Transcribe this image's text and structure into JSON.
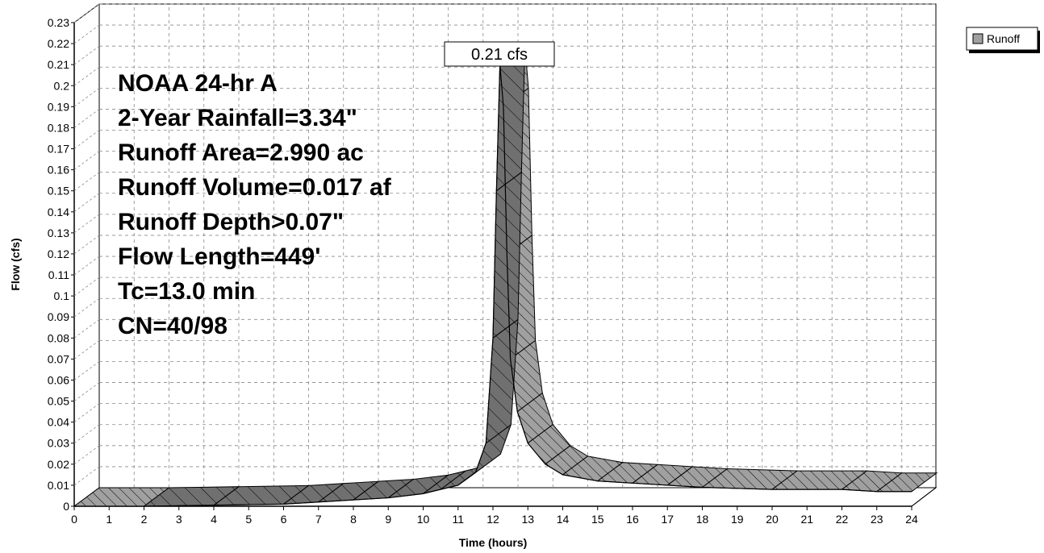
{
  "chart_data": {
    "type": "area",
    "title": "",
    "xlabel": "Time  (hours)",
    "ylabel": "Flow  (cfs)",
    "xlim": [
      0,
      24
    ],
    "ylim": [
      0,
      0.23
    ],
    "x_ticks": [
      "0",
      "1",
      "2",
      "3",
      "4",
      "5",
      "6",
      "7",
      "8",
      "9",
      "10",
      "11",
      "12",
      "13",
      "14",
      "15",
      "16",
      "17",
      "18",
      "19",
      "20",
      "21",
      "22",
      "23",
      "24"
    ],
    "y_ticks": [
      "0",
      "0.01",
      "0.02",
      "0.03",
      "0.04",
      "0.05",
      "0.06",
      "0.07",
      "0.08",
      "0.09",
      "0.1",
      "0.11",
      "0.12",
      "0.13",
      "0.14",
      "0.15",
      "0.16",
      "0.17",
      "0.18",
      "0.19",
      "0.2",
      "0.21",
      "0.22",
      "0.23"
    ],
    "grid": true,
    "legend_position": "top-right",
    "series": [
      {
        "name": "Runoff",
        "color": "#a0a0a0",
        "x": [
          0,
          2,
          4,
          6,
          7,
          8,
          9,
          10,
          10.5,
          11,
          11.5,
          11.8,
          12.0,
          12.1,
          12.2,
          12.3,
          12.4,
          12.5,
          12.7,
          13.0,
          13.5,
          14.0,
          15.0,
          16.0,
          17.0,
          18.0,
          20.0,
          22.0,
          23.0,
          24.0
        ],
        "values": [
          0.0,
          0.0,
          0.0005,
          0.001,
          0.002,
          0.003,
          0.004,
          0.006,
          0.008,
          0.01,
          0.016,
          0.03,
          0.08,
          0.15,
          0.21,
          0.19,
          0.12,
          0.07,
          0.045,
          0.03,
          0.02,
          0.015,
          0.012,
          0.011,
          0.01,
          0.009,
          0.008,
          0.008,
          0.007,
          0.007
        ]
      }
    ],
    "peak_label": "0.21 cfs",
    "annotations": [
      "NOAA 24-hr A",
      "2-Year Rainfall=3.34\"",
      "Runoff Area=2.990 ac",
      "Runoff Volume=0.017 af",
      "Runoff Depth>0.07\"",
      "Flow Length=449'",
      "Tc=13.0 min",
      "CN=40/98"
    ]
  },
  "legend": {
    "label": "Runoff",
    "swatch_color": "#a0a0a0"
  }
}
